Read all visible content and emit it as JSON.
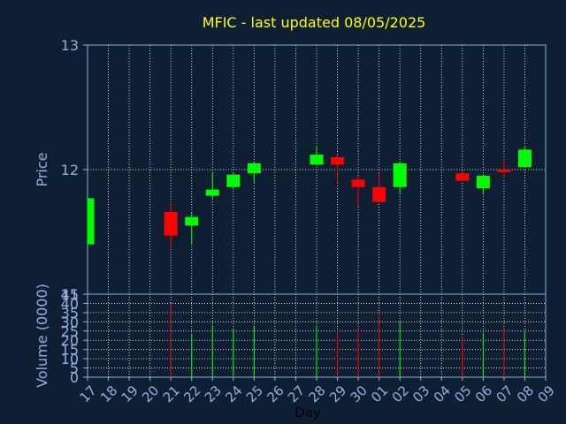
{
  "chart_data": [
    {
      "type": "candlestick",
      "title": "MFIC - last updated 08/05/2025",
      "ylabel": "Price",
      "ylim": [
        11,
        13
      ],
      "yticks": [
        "11",
        "12",
        "13"
      ],
      "grid": true,
      "colors": {
        "up": "#00ff00",
        "down": "#ff0000",
        "background": "#0f1f33",
        "grid": "#ffffff",
        "text": "#ffff00",
        "axis": "#8fb0e0"
      },
      "days": [
        "17",
        "18",
        "19",
        "20",
        "21",
        "22",
        "23",
        "24",
        "25",
        "26",
        "27",
        "28",
        "29",
        "30",
        "01",
        "02",
        "03",
        "04",
        "05",
        "06",
        "07",
        "08",
        "09"
      ],
      "candles": [
        {
          "day": "17",
          "open": 11.4,
          "close": 11.77,
          "high": 11.77,
          "low": 11.4
        },
        {
          "day": "21",
          "open": 11.66,
          "close": 11.47,
          "high": 11.75,
          "low": 11.37
        },
        {
          "day": "22",
          "open": 11.55,
          "close": 11.62,
          "high": 11.65,
          "low": 11.4
        },
        {
          "day": "23",
          "open": 11.79,
          "close": 11.84,
          "high": 11.98,
          "low": 11.77
        },
        {
          "day": "24",
          "open": 11.86,
          "close": 11.96,
          "high": 11.97,
          "low": 11.84
        },
        {
          "day": "25",
          "open": 11.97,
          "close": 12.05,
          "high": 12.06,
          "low": 11.89
        },
        {
          "day": "28",
          "open": 12.04,
          "close": 12.12,
          "high": 12.19,
          "low": 12.03
        },
        {
          "day": "29",
          "open": 12.1,
          "close": 12.04,
          "high": 12.12,
          "low": 11.89
        },
        {
          "day": "30",
          "open": 11.92,
          "close": 11.86,
          "high": 11.95,
          "low": 11.7
        },
        {
          "day": "01",
          "open": 11.86,
          "close": 11.74,
          "high": 11.97,
          "low": 11.74
        },
        {
          "day": "02",
          "open": 11.86,
          "close": 12.05,
          "high": 12.06,
          "low": 11.8
        },
        {
          "day": "05",
          "open": 11.97,
          "close": 11.91,
          "high": 11.99,
          "low": 11.91
        },
        {
          "day": "06",
          "open": 11.85,
          "close": 11.95,
          "high": 11.96,
          "low": 11.8
        },
        {
          "day": "07",
          "open": 12.0,
          "close": 11.98,
          "high": 12.09,
          "low": 11.93
        },
        {
          "day": "08",
          "open": 12.02,
          "close": 12.16,
          "high": 12.18,
          "low": 12.02
        }
      ]
    },
    {
      "type": "bar",
      "ylabel": "Volume (0000)",
      "xlabel": "Day",
      "ylim": [
        0,
        45
      ],
      "yticks": [
        "0",
        "5",
        "10",
        "15",
        "20",
        "25",
        "30",
        "35",
        "40",
        "45"
      ],
      "days": [
        "17",
        "18",
        "19",
        "20",
        "21",
        "22",
        "23",
        "24",
        "25",
        "26",
        "27",
        "28",
        "29",
        "30",
        "01",
        "02",
        "03",
        "04",
        "05",
        "06",
        "07",
        "08",
        "09"
      ],
      "bars": [
        {
          "day": "21",
          "value": 40,
          "direction": "down"
        },
        {
          "day": "22",
          "value": 23,
          "direction": "up"
        },
        {
          "day": "23",
          "value": 28,
          "direction": "up"
        },
        {
          "day": "24",
          "value": 26,
          "direction": "up"
        },
        {
          "day": "25",
          "value": 28,
          "direction": "up"
        },
        {
          "day": "28",
          "value": 28,
          "direction": "up"
        },
        {
          "day": "29",
          "value": 25,
          "direction": "down"
        },
        {
          "day": "30",
          "value": 26,
          "direction": "down"
        },
        {
          "day": "01",
          "value": 34,
          "direction": "down"
        },
        {
          "day": "02",
          "value": 30,
          "direction": "up"
        },
        {
          "day": "05",
          "value": 22,
          "direction": "down"
        },
        {
          "day": "06",
          "value": 24,
          "direction": "up"
        },
        {
          "day": "07",
          "value": 26,
          "direction": "down"
        },
        {
          "day": "08",
          "value": 25,
          "direction": "up"
        }
      ]
    }
  ]
}
